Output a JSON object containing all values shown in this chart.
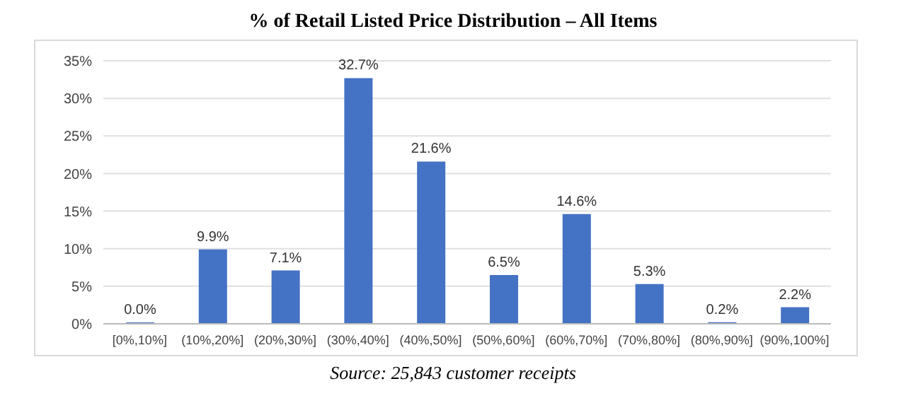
{
  "chart_data": {
    "type": "bar",
    "title": "% of Retail Listed Price Distribution – All Items",
    "categories": [
      "[0%,10%]",
      "(10%,20%]",
      "(20%,30%]",
      "(30%,40%]",
      "(40%,50%]",
      "(50%,60%]",
      "(60%,70%]",
      "(70%,80%]",
      "(80%,90%]",
      "(90%,100%]"
    ],
    "values": [
      0.0,
      9.9,
      7.1,
      32.7,
      21.6,
      6.5,
      14.6,
      5.3,
      0.2,
      2.2
    ],
    "value_labels": [
      "0.0%",
      "9.9%",
      "7.1%",
      "32.7%",
      "21.6%",
      "6.5%",
      "14.6%",
      "5.3%",
      "0.2%",
      "2.2%"
    ],
    "color": "#4472c4",
    "ylim": [
      0,
      35
    ],
    "yticks": [
      {
        "value": 0,
        "label": "0%"
      },
      {
        "value": 5,
        "label": "5%"
      },
      {
        "value": 10,
        "label": "10%"
      },
      {
        "value": 15,
        "label": "15%"
      },
      {
        "value": 20,
        "label": "20%"
      },
      {
        "value": 25,
        "label": "25%"
      },
      {
        "value": 30,
        "label": "30%"
      },
      {
        "value": 35,
        "label": "35%"
      }
    ],
    "grid": "y",
    "annotations": [
      "Source: 25,843 customer receipts"
    ]
  }
}
